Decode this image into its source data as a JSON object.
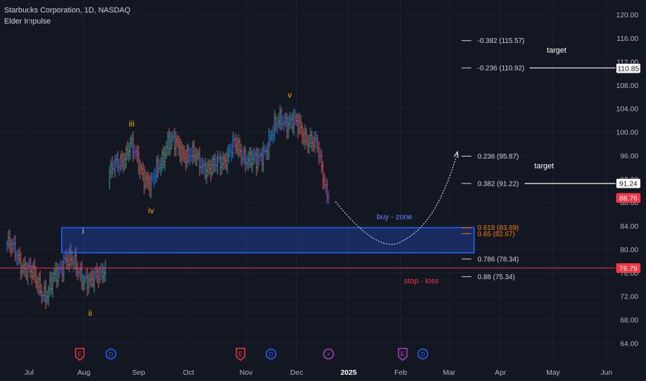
{
  "header": {
    "title": "Starbucks Corporation, 1D, NASDAQ",
    "indicator": "Elder Impulse"
  },
  "colors": {
    "background": "#131722",
    "bull": "#26a69a",
    "bear": "#ef5350",
    "neutral": "#2962ff",
    "wave": "#f7a600",
    "zone_stroke": "#2962ff",
    "stop": "#f23645",
    "fib_text": "#d1d4dc",
    "fib_orange": "#f57c00"
  },
  "chart_data": {
    "type": "bar",
    "ylim": [
      60.5,
      122.5
    ],
    "y_ticks": [
      64,
      68,
      72,
      76,
      80,
      84,
      88,
      92,
      96,
      100,
      104,
      108,
      112,
      116,
      120
    ],
    "x_ticks": [
      "Jul",
      "Aug",
      "Sep",
      "Oct",
      "Nov",
      "Dec",
      "2025",
      "Feb",
      "Mar",
      "Apr",
      "May",
      "Jun"
    ],
    "x_tick_bold": "2025",
    "price_segments": [
      {
        "from": 0,
        "to": 29,
        "start": 81,
        "end": 72.2
      },
      {
        "from": 29,
        "to": 42,
        "start": 72.2,
        "end": 78.8
      },
      {
        "from": 42,
        "to": 61,
        "start": 78.8,
        "end": 74
      },
      {
        "from": 61,
        "to": 71,
        "start": 74,
        "end": 77.5
      },
      {
        "from": 71,
        "to": 72,
        "start": 77.5,
        "end": 92
      },
      {
        "from": 72,
        "to": 89,
        "start": 92,
        "end": 97.5
      },
      {
        "from": 89,
        "to": 104,
        "start": 97.5,
        "end": 90.5
      },
      {
        "from": 104,
        "to": 116,
        "start": 90.5,
        "end": 98.5
      },
      {
        "from": 116,
        "to": 148,
        "start": 98.5,
        "end": 93.5
      },
      {
        "from": 148,
        "to": 164,
        "start": 93.5,
        "end": 97.5
      },
      {
        "from": 164,
        "to": 180,
        "start": 97.5,
        "end": 94.5
      },
      {
        "from": 180,
        "to": 198,
        "start": 94.5,
        "end": 102.5
      },
      {
        "from": 198,
        "to": 210,
        "start": 102.5,
        "end": 101
      },
      {
        "from": 210,
        "to": 224,
        "start": 101,
        "end": 97
      },
      {
        "from": 224,
        "to": 232,
        "start": 97,
        "end": 88.8
      }
    ],
    "waves": [
      {
        "label": "i",
        "bar": 55,
        "price": 82.2,
        "color": "light"
      },
      {
        "label": "ii",
        "bar": 60,
        "price": 70.3,
        "color": "wave"
      },
      {
        "label": "iii",
        "bar": 90,
        "price": 100.5,
        "color": "wave"
      },
      {
        "label": "iv",
        "bar": 104,
        "price": 87.8,
        "color": "wave"
      },
      {
        "label": "v",
        "bar": 204,
        "price": 105.4,
        "color": "wave"
      }
    ],
    "fib_levels": [
      {
        "label": "-0.382 (115.57)",
        "price": 115.57,
        "line_to": "short",
        "color": "light"
      },
      {
        "label": "-0.236 (110.92)",
        "price": 110.92,
        "line_to": "axis",
        "color": "light"
      },
      {
        "label": "0.236 (95.87)",
        "price": 95.87,
        "line_to": "short",
        "color": "light"
      },
      {
        "label": "0.382 (91.22)",
        "price": 91.22,
        "line_to": "axis",
        "color": "light"
      },
      {
        "label": "0.618 (83.69)",
        "price": 83.69,
        "line_to": "short",
        "color": "orange"
      },
      {
        "label": "0.65 (82.67)",
        "price": 82.67,
        "line_to": "short",
        "color": "orange"
      },
      {
        "label": "0.786 (78.34)",
        "price": 78.34,
        "line_to": "short",
        "color": "light"
      },
      {
        "label": "0.88 (75.34)",
        "price": 75.34,
        "line_to": "short",
        "color": "light"
      }
    ],
    "buy_zone": {
      "label": "buy - zone",
      "top": 83.69,
      "bottom": 79.4
    },
    "stop_loss": {
      "label": "stop - loss",
      "price": 76.79
    },
    "targets": [
      {
        "label": "target",
        "price": 110.92
      },
      {
        "label": "target",
        "price": 91.22
      }
    ],
    "price_badges": [
      {
        "text": "110.85",
        "price": 110.85,
        "style": "white"
      },
      {
        "text": "91.24",
        "price": 91.24,
        "style": "white"
      },
      {
        "text": "88.76",
        "price": 88.76,
        "style": "red"
      },
      {
        "text": "76.79",
        "price": 76.79,
        "style": "red"
      }
    ],
    "events": [
      {
        "glyph": "E",
        "type": "earnings-past"
      },
      {
        "glyph": "D",
        "type": "dividend"
      },
      {
        "glyph": "E",
        "type": "earnings-past"
      },
      {
        "glyph": "D",
        "type": "dividend"
      },
      {
        "glyph": "⚡",
        "type": "split-or-news"
      },
      {
        "glyph": "E",
        "type": "earnings-future"
      },
      {
        "glyph": "D",
        "type": "dividend-future"
      }
    ]
  }
}
